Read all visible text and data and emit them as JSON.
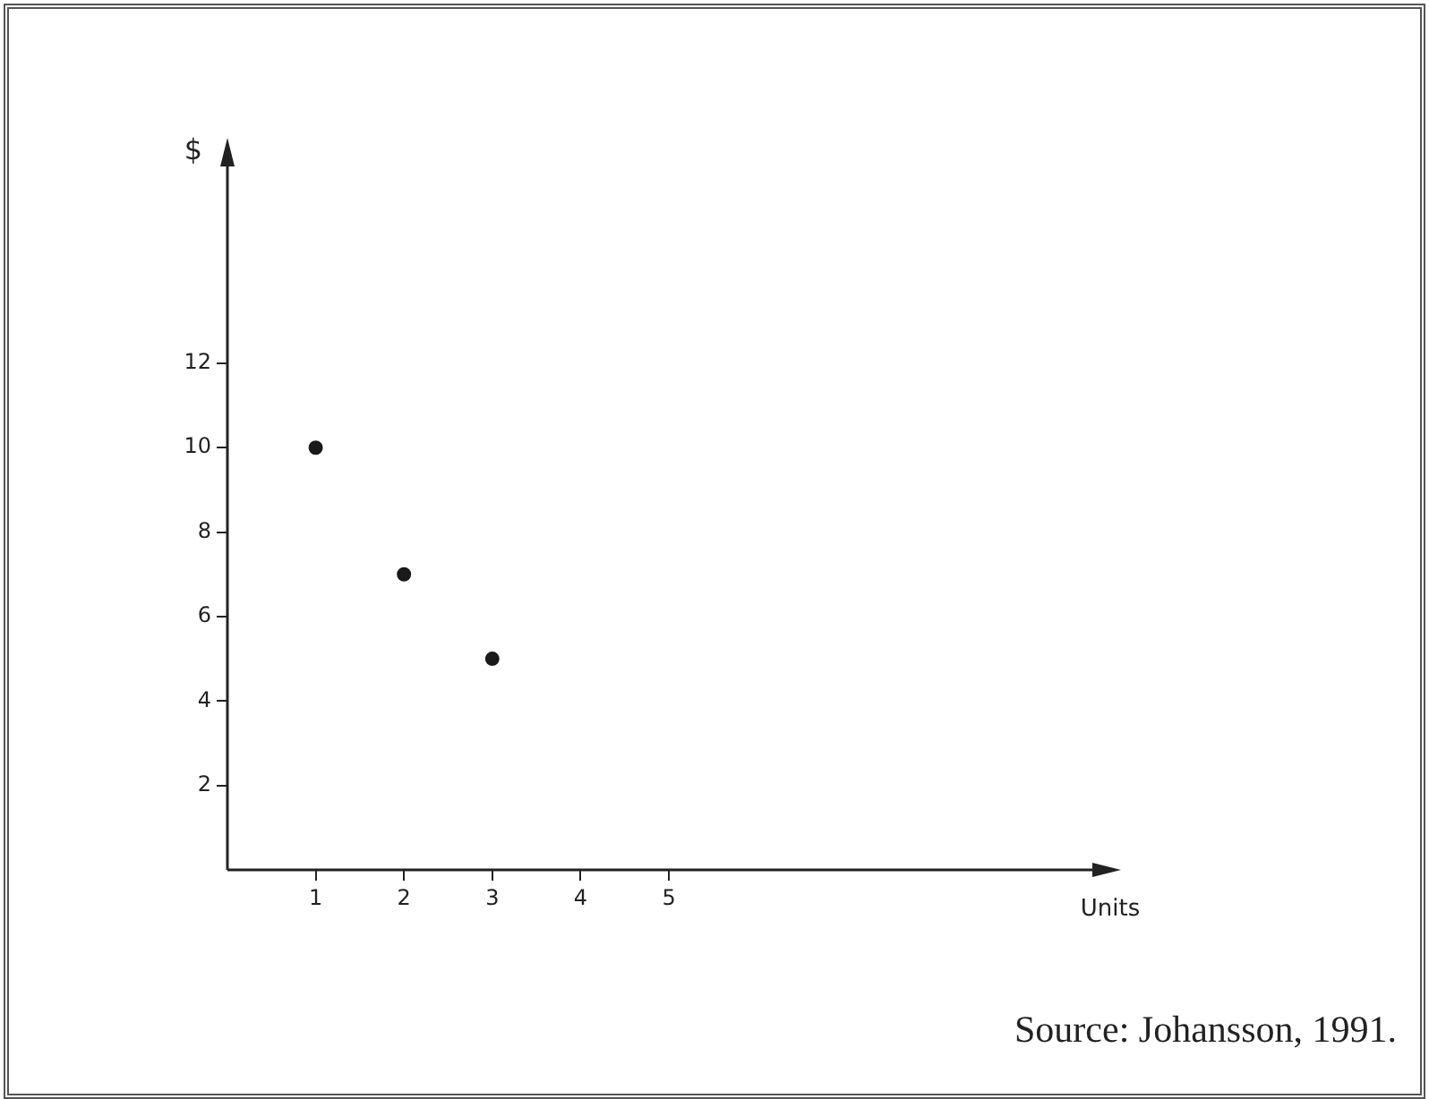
{
  "chart_data": {
    "type": "scatter",
    "xlabel": "Units",
    "ylabel": "$",
    "x": [
      1,
      2,
      3
    ],
    "values": [
      10,
      7,
      5
    ],
    "color": "#1a1a1a",
    "marker": "circle",
    "xlim": [
      0,
      10
    ],
    "xticks": [
      1,
      2,
      3,
      4,
      5
    ],
    "ylim": [
      0,
      17
    ],
    "yticks": [
      2,
      4,
      6,
      8,
      10,
      12
    ],
    "grid": false,
    "legend": false,
    "annotations": [
      "Source: Johansson, 1991."
    ]
  }
}
